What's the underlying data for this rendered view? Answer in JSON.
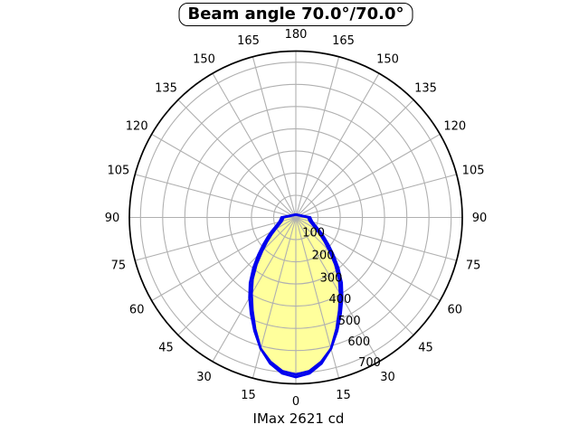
{
  "title": "Beam angle 70.0°/70.0°",
  "footer": "IMax 2621 cd",
  "chart_data": {
    "type": "line",
    "projection": "polar",
    "title": "Beam angle 70.0°/70.0°",
    "annotation": "IMax 2621 cd",
    "angle_zero_position": "bottom",
    "angle_tick_step_deg": 15,
    "angle_tick_labels": [
      0,
      15,
      30,
      45,
      60,
      75,
      90,
      105,
      120,
      135,
      150,
      165,
      180
    ],
    "mirrored_angle_labels": true,
    "radial_ticks": [
      100,
      200,
      300,
      400,
      500,
      600,
      700
    ],
    "r_max": 750,
    "grid": true,
    "legend": "none",
    "colors": {
      "curve": "#0000ee",
      "fill": "#ffff9c",
      "grid": "#b0b0b0",
      "axis": "#000000",
      "background": "#ffffff"
    },
    "series": [
      {
        "name": "beam-curve-filled",
        "filled": true,
        "symmetric": true,
        "angles_deg": [
          0,
          5,
          10,
          15,
          20,
          25,
          30,
          35,
          40,
          45,
          50,
          55,
          60,
          65,
          70,
          75,
          80,
          85,
          90
        ],
        "values": [
          720,
          706,
          668,
          612,
          535,
          462,
          398,
          340,
          275,
          215,
          170,
          135,
          107,
          88,
          75,
          66,
          61,
          58,
          57
        ]
      },
      {
        "name": "beam-curve-outline",
        "filled": false,
        "symmetric": true,
        "angles_deg": [
          0,
          5,
          10,
          15,
          20,
          25,
          30,
          35,
          40,
          45,
          50,
          55,
          60,
          65,
          70,
          75,
          80,
          85,
          90
        ],
        "values": [
          708,
          695,
          660,
          612,
          545,
          478,
          418,
          360,
          298,
          240,
          192,
          155,
          125,
          102,
          87,
          77,
          71,
          67,
          65
        ]
      }
    ]
  }
}
